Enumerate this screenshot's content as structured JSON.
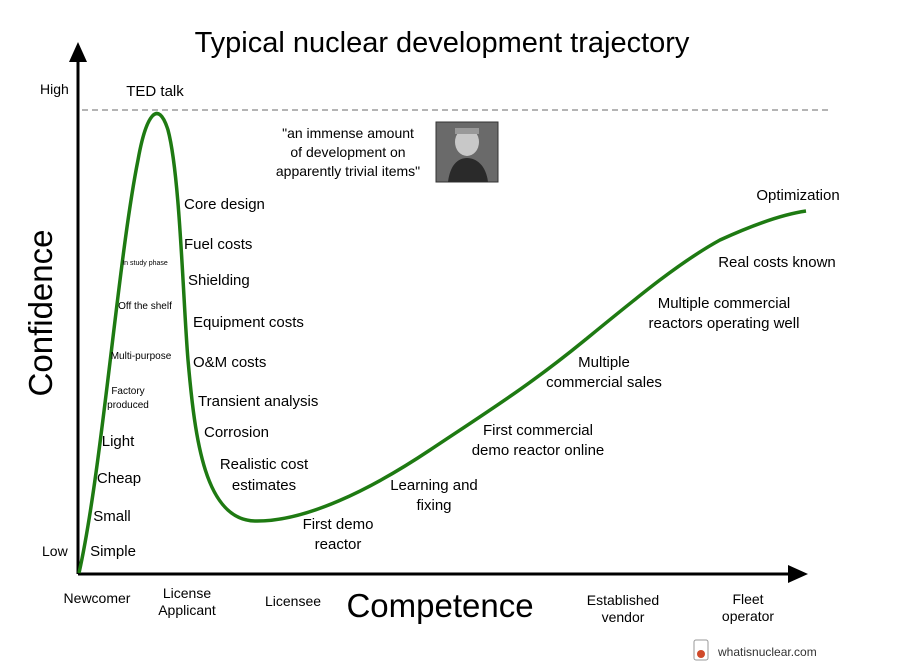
{
  "title": "Typical nuclear development trajectory",
  "y_axis": {
    "label": "Confidence",
    "high": "High",
    "low": "Low"
  },
  "x_axis": {
    "label": "Competence",
    "stages": [
      "Newcomer",
      "License\nApplicant",
      "Licensee",
      "Established\nvendor",
      "Fleet\noperator"
    ]
  },
  "peak_label": "TED talk",
  "quote": "\"an immense amount\nof development on\napparently trivial items\"",
  "rising_labels": [
    "In study phase",
    "Off the shelf",
    "Multi-purpose",
    "Factory\nproduced",
    "Light",
    "Cheap",
    "Small",
    "Simple"
  ],
  "falling_labels": [
    "Core design",
    "Fuel costs",
    "Shielding",
    "Equipment costs",
    "O&M costs",
    "Transient analysis",
    "Corrosion",
    "Realistic cost\nestimates"
  ],
  "recovery_labels": [
    "First demo\nreactor",
    "Learning and\nfixing",
    "First commercial\ndemo reactor online",
    "Multiple\ncommercial sales",
    "Multiple commercial\nreactors operating well",
    "Real costs known",
    "Optimization"
  ],
  "brand": "whatisnuclear.com",
  "colors": {
    "curve": "#1e7a12",
    "axis": "#000000",
    "dash": "#888888"
  }
}
